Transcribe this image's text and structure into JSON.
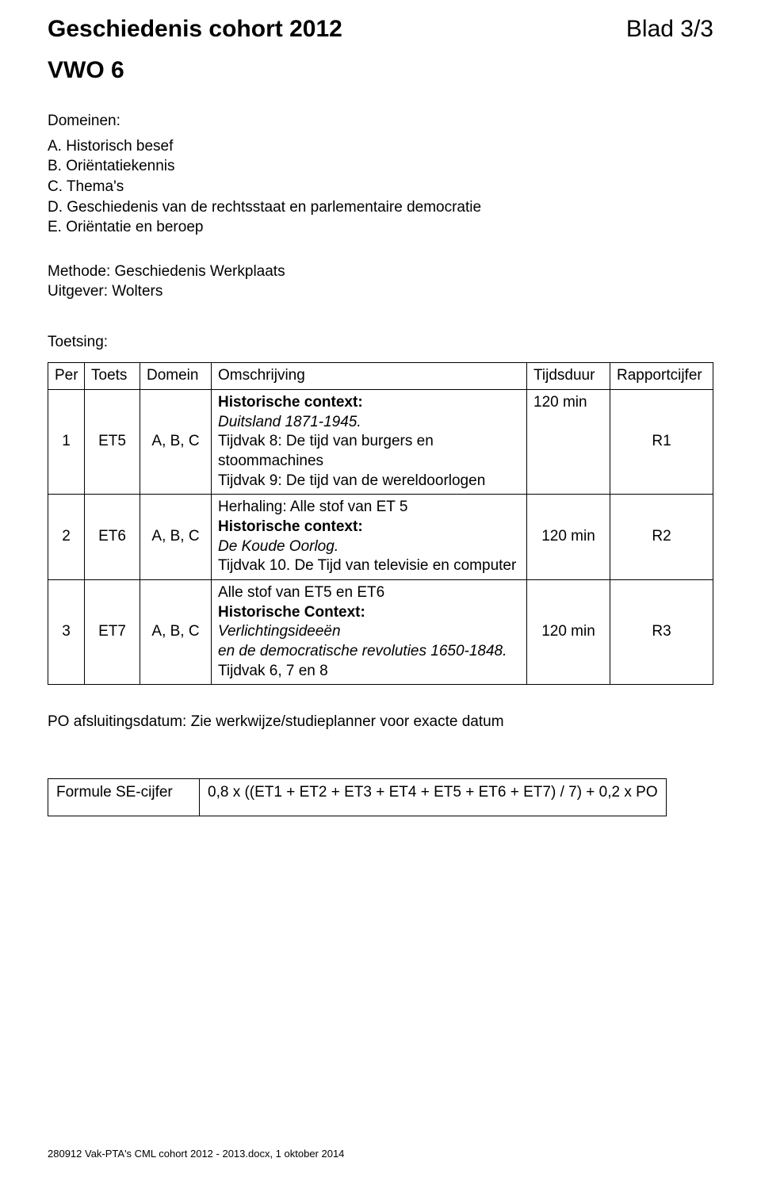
{
  "header": {
    "title_left": "Geschiedenis cohort 2012",
    "title_right": "Blad 3/3",
    "subtitle": "VWO 6"
  },
  "domeinen": {
    "label": "Domeinen:",
    "items": [
      "A. Historisch besef",
      "B. Oriëntatiekennis",
      "C. Thema's",
      "D. Geschiedenis van de rechtsstaat en parlementaire democratie",
      "E. Oriëntatie en beroep"
    ]
  },
  "methode": {
    "line1": "Methode: Geschiedenis Werkplaats",
    "line2": "Uitgever: Wolters"
  },
  "toetsing": {
    "label": "Toetsing:",
    "columns": {
      "per": "Per",
      "toets": "Toets",
      "domein": "Domein",
      "omschrijving": "Omschrijving",
      "tijdsduur": "Tijdsduur",
      "rapportcijfer": "Rapportcijfer"
    },
    "rows": [
      {
        "per": "1",
        "toets": "ET5",
        "domein": "A, B, C",
        "oms": {
          "l1_bold": "Historische context:",
          "l2_italic": "Duitsland 1871-1945.",
          "l3": "Tijdvak 8: De tijd van burgers en stoommachines",
          "l4": "Tijdvak 9: De tijd van de wereldoorlogen"
        },
        "tijd": "120 min",
        "rap": "R1"
      },
      {
        "per": "2",
        "toets": "ET6",
        "domein": "A, B, C",
        "oms": {
          "l1": "Herhaling: Alle stof van ET 5",
          "l2_bold": "Historische context:",
          "l3_italic": "De Koude Oorlog.",
          "l4": "Tijdvak 10. De Tijd van televisie en computer"
        },
        "tijd": "120 min",
        "rap": "R2"
      },
      {
        "per": "3",
        "toets": "ET7",
        "domein": "A, B, C",
        "oms": {
          "l1": "Alle stof van ET5 en ET6",
          "l2_bold": "Historische Context:",
          "l3_italic": "Verlichtingsideeën",
          "l4_italic": "en de democratische revoluties 1650-1848.",
          "l5": "Tijdvak 6, 7 en 8"
        },
        "tijd": "120 min",
        "rap": "R3"
      }
    ]
  },
  "po_line": "PO afsluitingsdatum: Zie werkwijze/studieplanner voor exacte datum",
  "formula": {
    "label": "Formule SE-cijfer",
    "value": "0,8 x ((ET1 + ET2 + ET3 + ET4 + ET5 + ET6 + ET7) / 7) + 0,2 x PO"
  },
  "footer": "280912 Vak-PTA's CML cohort 2012 - 2013.docx, 1 oktober 2014"
}
